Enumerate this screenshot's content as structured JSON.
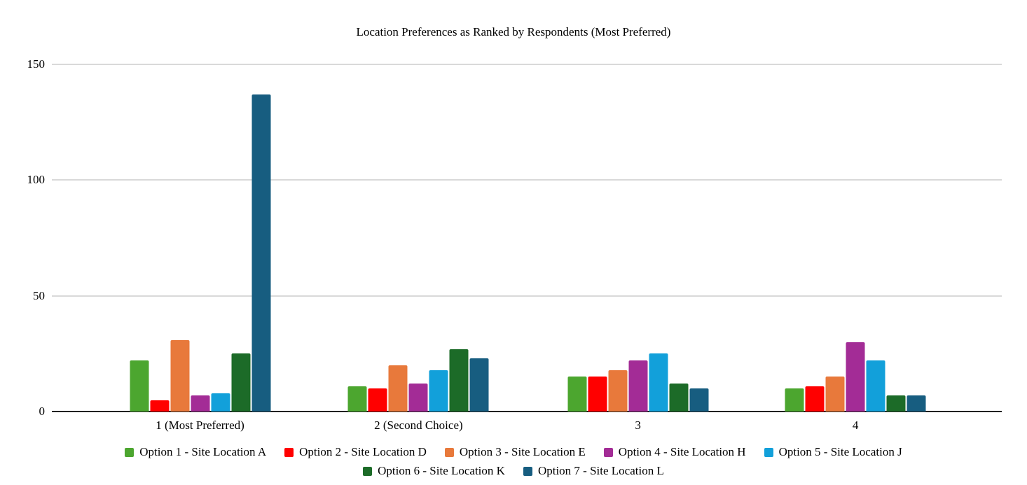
{
  "title": "Location Preferences as Ranked by Respondents (Most Preferred)",
  "chart_data": {
    "type": "bar",
    "title": "Location Preferences as Ranked by Respondents (Most Preferred)",
    "categories": [
      "1 (Most Preferred)",
      "2 (Second Choice)",
      "3",
      "4"
    ],
    "series": [
      {
        "name": "Option 1 - Site Location A",
        "color": "#4CA62F",
        "values": [
          22,
          11,
          15,
          10
        ]
      },
      {
        "name": "Option 2 - Site Location D",
        "color": "#FF0000",
        "values": [
          5,
          10,
          15,
          11
        ]
      },
      {
        "name": "Option 3 - Site Location E",
        "color": "#E8793B",
        "values": [
          31,
          20,
          18,
          15
        ]
      },
      {
        "name": "Option 4 - Site Location H",
        "color": "#A32C96",
        "values": [
          7,
          12,
          22,
          30
        ]
      },
      {
        "name": "Option 5 - Site Location J",
        "color": "#12A0DA",
        "values": [
          8,
          18,
          25,
          22
        ]
      },
      {
        "name": "Option 6 - Site Location K",
        "color": "#1C6B28",
        "values": [
          25,
          27,
          12,
          7
        ]
      },
      {
        "name": "Option 7 - Site Location L",
        "color": "#175D80",
        "values": [
          137,
          23,
          10,
          7
        ]
      }
    ],
    "y_ticks": [
      0,
      50,
      100,
      150
    ],
    "ylim": [
      0,
      150
    ],
    "grid": true,
    "legend_position": "bottom",
    "xlabel": "",
    "ylabel": ""
  },
  "colors": {
    "background": "#ffffff",
    "gridline": "#d9d9d9",
    "axis": "#212121",
    "text": "#000000"
  },
  "layout_hints": {
    "group_center_percents": [
      15.6,
      38.6,
      61.7,
      84.6
    ]
  }
}
